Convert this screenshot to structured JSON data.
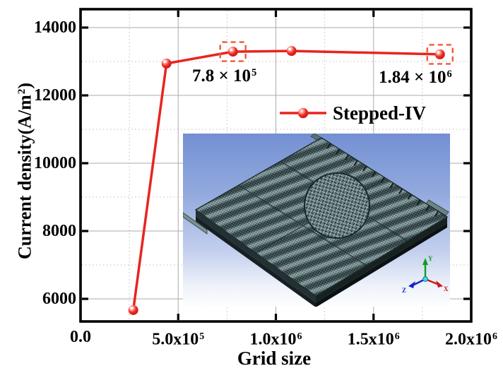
{
  "figure": {
    "background": "#ffffff"
  },
  "chart_data": {
    "type": "line",
    "title": "",
    "xlabel": "Grid size",
    "ylabel": "Current density(A/m²)",
    "ylabel_parts": {
      "base": "Current density(A/m",
      "sup": "2",
      "end": ")"
    },
    "xlim": [
      0,
      2000000
    ],
    "ylim": [
      5333,
      14542
    ],
    "x_major_ticks": [
      {
        "value": 0,
        "base": "0.0",
        "sup": ""
      },
      {
        "value": 500000,
        "base": "5.0x10",
        "sup": "5"
      },
      {
        "value": 1000000,
        "base": "1.0x10",
        "sup": "6"
      },
      {
        "value": 1500000,
        "base": "1.5x10",
        "sup": "6"
      },
      {
        "value": 2000000,
        "base": "2.0x10",
        "sup": "6"
      }
    ],
    "y_major_ticks": [
      {
        "value": 6000,
        "label": "6000"
      },
      {
        "value": 8000,
        "label": "8000"
      },
      {
        "value": 10000,
        "label": "10000"
      },
      {
        "value": 12000,
        "label": "12000"
      },
      {
        "value": 14000,
        "label": "14000"
      }
    ],
    "x_minor_ticks": [
      250000,
      750000,
      1250000,
      1750000
    ],
    "y_minor_ticks": [
      7000,
      9000,
      11000,
      13000
    ],
    "grid": {
      "major_style": "solid",
      "minor_style": "dotted",
      "major_color": "#ababab",
      "minor_color": "#cccccc"
    },
    "series": [
      {
        "name": "Stepped-IV",
        "color": "#e8241f",
        "marker": "ball-circle",
        "x": [
          270000,
          440000,
          780000,
          1080000,
          1840000
        ],
        "y": [
          5670,
          12940,
          13290,
          13310,
          13210
        ]
      }
    ],
    "highlighted_point_indexes": [
      2,
      4
    ],
    "highlight_box_color": "#ee5c32",
    "annotations": [
      {
        "base": "7.8 × 10",
        "sup": "5",
        "point_index": 2
      },
      {
        "base": "1.84 × 10",
        "sup": "6",
        "point_index": 4
      }
    ],
    "legend": {
      "label": "Stepped-IV",
      "position": "upper-center-right"
    }
  },
  "inset": {
    "triad": {
      "x": "X",
      "y": "Y",
      "z": "Z"
    }
  }
}
